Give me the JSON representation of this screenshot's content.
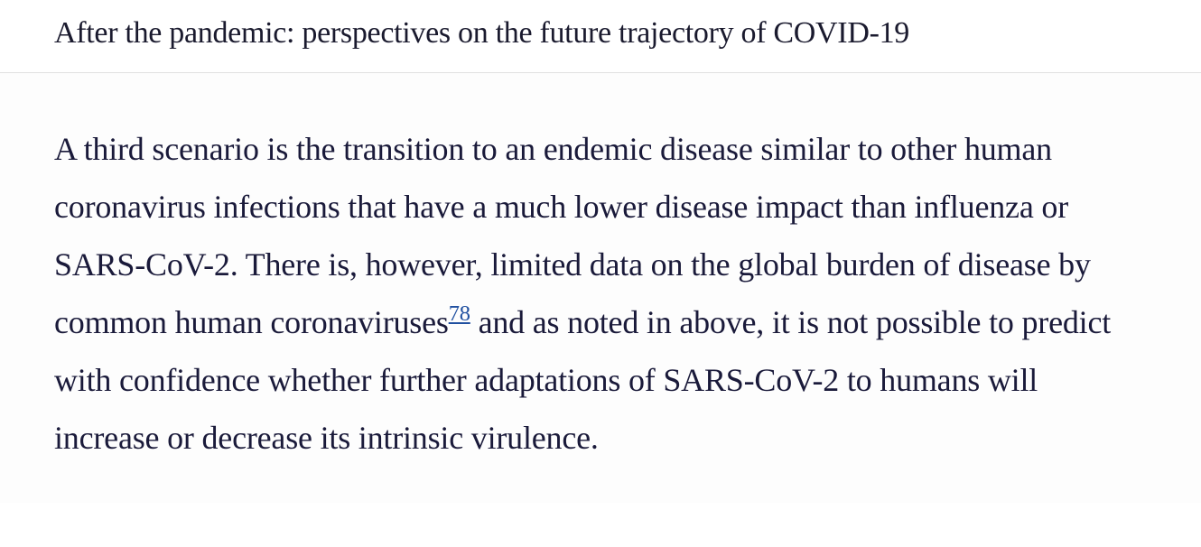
{
  "header": {
    "title": "After the pandemic: perspectives on the future trajectory of COVID-19"
  },
  "content": {
    "paragraph_part1": "A third scenario is the transition to an endemic disease similar to other human coronavirus infections that have a much lower disease impact than influenza or SARS-CoV-2. There is, however, limited data on the global burden of disease by common human coronaviruses",
    "reference_number": "78",
    "paragraph_part2": " and as noted in above, it is not possible to predict with confidence whether further adaptations of SARS-CoV-2 to humans will increase or decrease its intrinsic virulence."
  },
  "colors": {
    "text_primary": "#1a1a3a",
    "link_color": "#2050a0",
    "border_color": "#e0e0e0",
    "background": "#ffffff"
  },
  "typography": {
    "title_fontsize": 34,
    "body_fontsize": 36,
    "line_height": 1.78,
    "font_family": "Georgia, serif"
  }
}
